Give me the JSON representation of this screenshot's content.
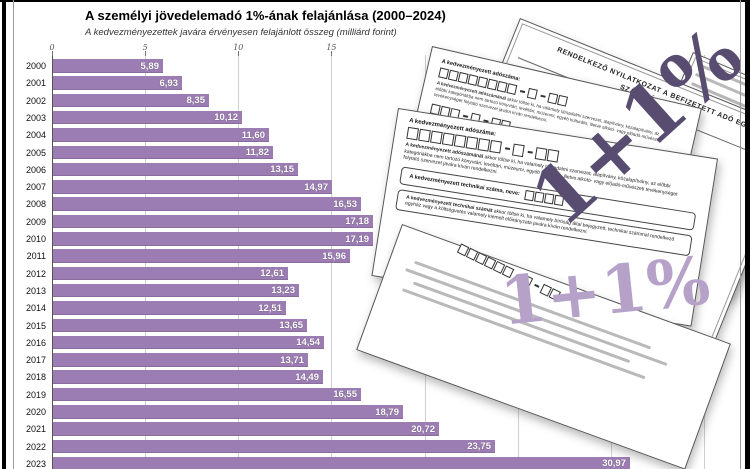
{
  "title": "A személyi jövedelemadó 1%-ának felajánlása (2000–2024)",
  "subtitle": "A kedvezményezettek javára érvényesen felajánlott összeg (milliárd forint)",
  "chart_data": {
    "type": "bar",
    "orientation": "horizontal",
    "unit": "milliárd forint",
    "categories": [
      "2000",
      "2001",
      "2002",
      "2003",
      "2004",
      "2005",
      "2006",
      "2007",
      "2008",
      "2009",
      "2010",
      "2011",
      "2012",
      "2013",
      "2014",
      "2015",
      "2016",
      "2017",
      "2018",
      "2019",
      "2020",
      "2021",
      "2022",
      "2023"
    ],
    "values": [
      5.89,
      6.93,
      8.35,
      10.12,
      11.6,
      11.82,
      13.15,
      14.97,
      16.53,
      17.18,
      17.19,
      15.96,
      12.61,
      13.23,
      12.51,
      13.65,
      14.54,
      13.71,
      14.49,
      16.55,
      18.79,
      20.72,
      23.75,
      30.97
    ],
    "value_labels": [
      "5,89",
      "6,93",
      "8,35",
      "10,12",
      "11,60",
      "11,82",
      "13,15",
      "14,97",
      "16,53",
      "17,18",
      "17,19",
      "15,96",
      "12,61",
      "13,23",
      "12,51",
      "13,65",
      "14,54",
      "13,71",
      "14,49",
      "16,55",
      "18,79",
      "20,72",
      "23,75",
      "30,97"
    ],
    "x_ticks": [
      {
        "v": 0,
        "label": "0"
      },
      {
        "v": 5,
        "label": "5"
      },
      {
        "v": 10,
        "label": "10"
      },
      {
        "v": 15,
        "label": "15"
      },
      {
        "v": 20,
        "label": ""
      },
      {
        "v": 25,
        "label": ""
      },
      {
        "v": 30,
        "label": ""
      },
      {
        "v": 35,
        "label": ""
      }
    ],
    "xlim": [
      0,
      37
    ],
    "grid": true,
    "legend": false,
    "bar_color": "#9c7db3",
    "value_label_color": "#ffffff"
  },
  "illustration": {
    "overlay_text_dark": "1+1%",
    "overlay_text_light": "1+1%",
    "overlay_dark_color": "#584c70",
    "overlay_light_color": "#b6a2c9",
    "form_title": "RENDELKEZŐ NYILATKOZAT A BEFIZETETT ADÓ EGY SZÁZALÉKÁRÓL",
    "taxnum_label": "A kedvezményezett adószáma:",
    "taxnum_note_lead": "A kedvezményezett adószámánál",
    "taxnum_note": " akkor töltse ki, ha valamely társadalmi szervezet, alapítvány, közalapítvány, az előbbi kategóriákba nem tartozó könyvtári, levéltári, múzeumi, egyéb kulturális, illetve alkotó- vagy előadó-művészeti tevékenységet folytató szervezet javára kíván rendelkezni.",
    "technum_label": "A kedvezményezett technikai száma, neve:",
    "technum_note_lead": "A kedvezményezett technikai számát",
    "technum_note": " akkor töltse ki, ha valamely bíróság által bejegyzett, technikai számmal rendelkező egyház vagy a költségvetés valamely kiemelt előirányzata javára kíván rendelkezni."
  }
}
